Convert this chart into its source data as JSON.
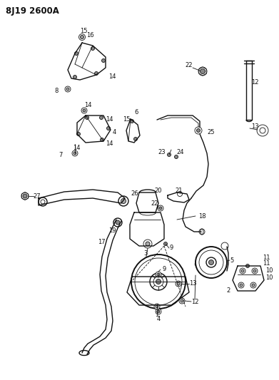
{
  "title": "8J19 2600A",
  "bg_color": "#ffffff",
  "fg_color": "#111111",
  "fig_width": 3.91,
  "fig_height": 5.33,
  "dpi": 100,
  "lw_thin": 0.6,
  "lw_med": 1.0,
  "lw_thick": 1.4,
  "label_fs": 6.0,
  "title_fs": 8.5
}
